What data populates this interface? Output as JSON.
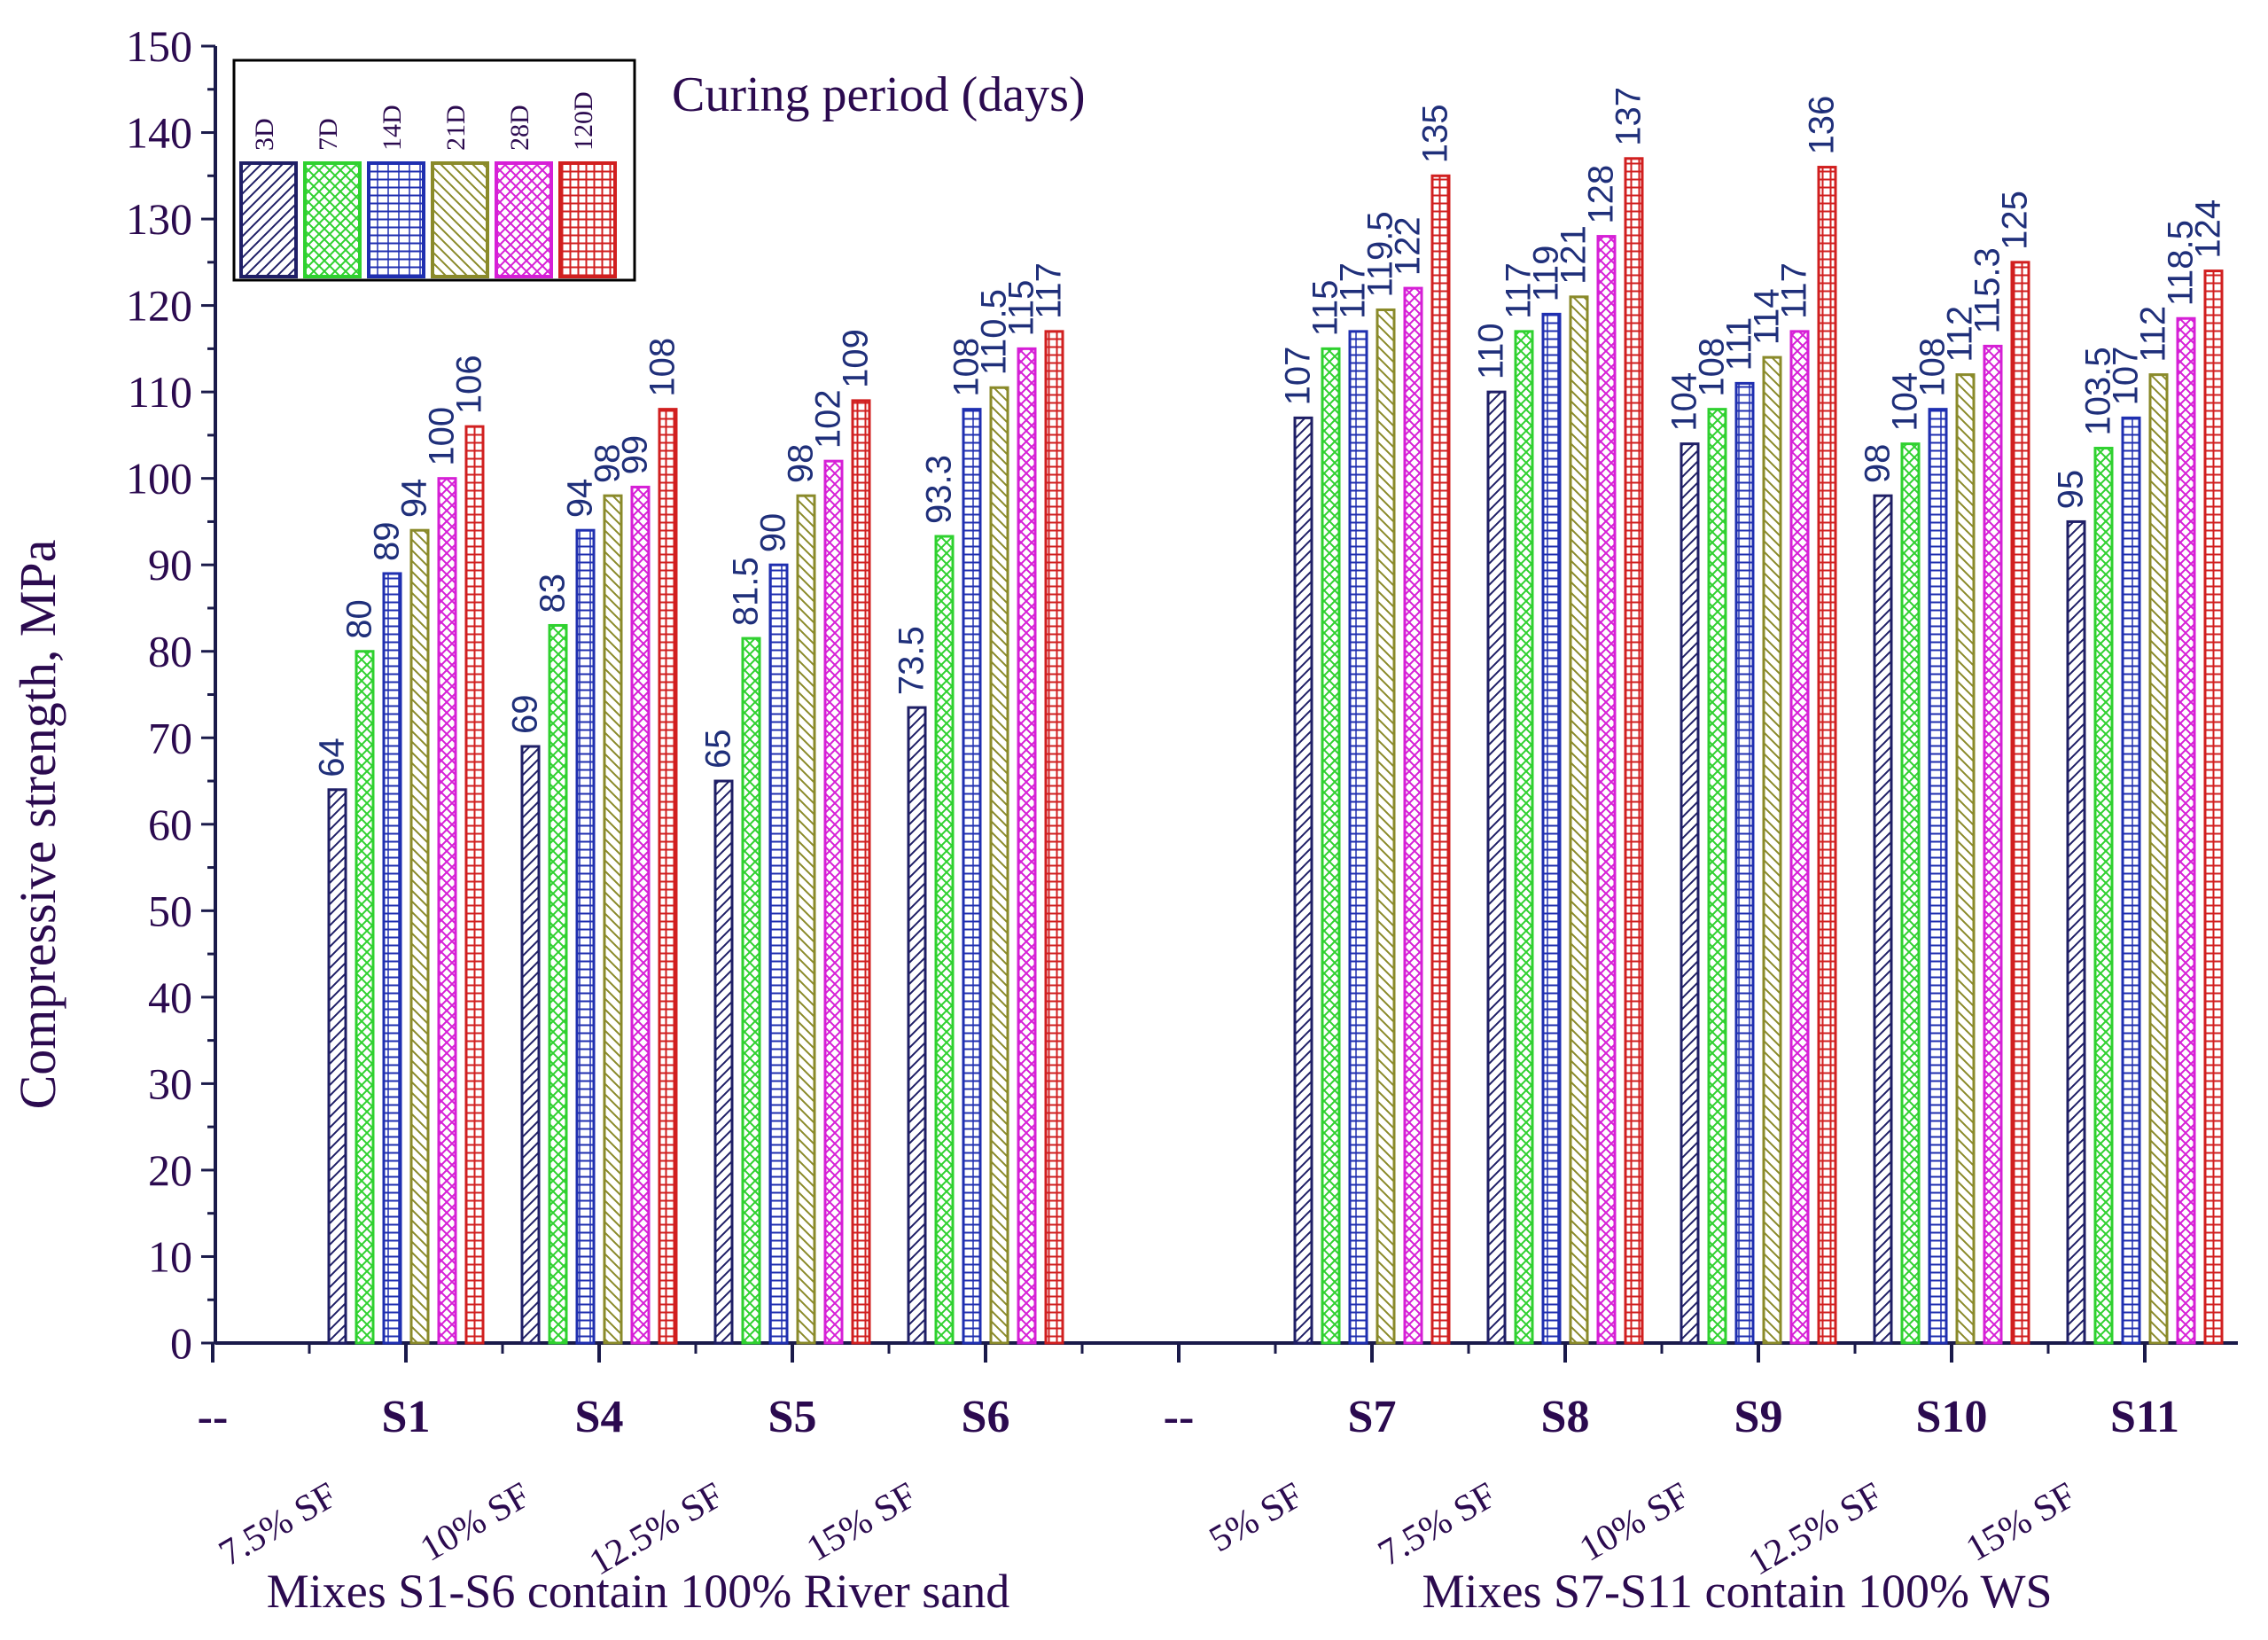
{
  "chart_data": {
    "type": "bar",
    "ylabel": "Compressive strength, MPa",
    "ylim": [
      0,
      150
    ],
    "yticks": [
      0,
      10,
      20,
      30,
      40,
      50,
      60,
      70,
      80,
      90,
      100,
      110,
      120,
      130,
      140,
      150
    ],
    "legend_title": "Curing period (days)",
    "categories": [
      "--",
      "S1",
      "S4",
      "S5",
      "S6",
      "--",
      "S7",
      "S8",
      "S9",
      "S10",
      "S11"
    ],
    "sf_labels": [
      "7.5% SF",
      "10% SF",
      "12.5% SF",
      "15% SF",
      "5% SF",
      "7.5% SF",
      "10% SF",
      "12.5% SF",
      "15% SF"
    ],
    "group_labels": [
      "Mixes S1-S6 contain 100% River sand",
      "Mixes S7-S11 contain 100% WS"
    ],
    "series": [
      {
        "name": "3D",
        "color": "#1f1f66",
        "pattern": "diag",
        "values": [
          null,
          64,
          69,
          65,
          73.5,
          null,
          107,
          110,
          104,
          98,
          95
        ]
      },
      {
        "name": "7D",
        "color": "#2fd12f",
        "pattern": "crosshatch",
        "values": [
          null,
          80,
          83,
          81.5,
          93.3,
          null,
          115,
          117,
          108,
          104,
          103.5
        ]
      },
      {
        "name": "14D",
        "color": "#1f2fb0",
        "pattern": "hlines",
        "values": [
          null,
          89,
          94,
          90,
          108,
          null,
          117,
          119,
          111,
          108,
          107
        ]
      },
      {
        "name": "21D",
        "color": "#8a8a2a",
        "pattern": "diagrev",
        "values": [
          null,
          94,
          98,
          98,
          110.5,
          null,
          119.5,
          121,
          114,
          112,
          112
        ]
      },
      {
        "name": "28D",
        "color": "#d61fd6",
        "pattern": "xdiag",
        "values": [
          null,
          100,
          99,
          102,
          115,
          null,
          122,
          128,
          117,
          115.3,
          118.5
        ]
      },
      {
        "name": "120D",
        "color": "#d11f1f",
        "pattern": "grid",
        "values": [
          null,
          106,
          108,
          109,
          117,
          null,
          135,
          137,
          136,
          125,
          124
        ]
      }
    ],
    "value_labels": [
      [
        null,
        "64",
        "69",
        "65",
        "73.5",
        null,
        "107",
        "110",
        "104",
        "98",
        "95"
      ],
      [
        null,
        "80",
        "83",
        "81.5",
        "93.3",
        null,
        "115",
        "117",
        "108",
        "104",
        "103.5"
      ],
      [
        null,
        "89",
        "94",
        "90",
        "108",
        null,
        "117",
        "119",
        "111",
        "108",
        "107"
      ],
      [
        null,
        "94",
        "98",
        "98",
        "110.5",
        null,
        "119.5",
        "121",
        "114",
        "112",
        "112"
      ],
      [
        null,
        "100",
        "99",
        "102",
        "115",
        null,
        "122",
        "128",
        "117",
        "115.3",
        "118.5"
      ],
      [
        null,
        "106",
        "108",
        "109",
        "117",
        null,
        "135",
        "137",
        "136",
        "125",
        "124"
      ]
    ]
  }
}
